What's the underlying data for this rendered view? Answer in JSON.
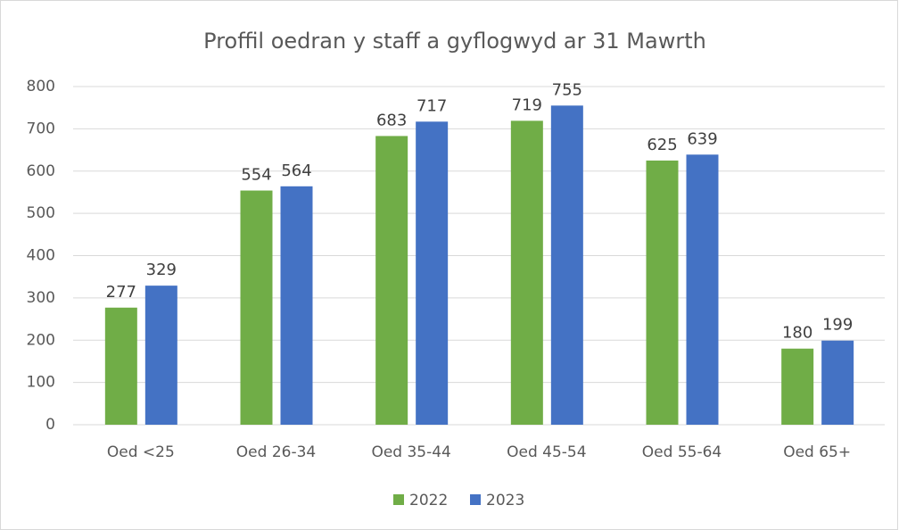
{
  "chart_data": {
    "type": "bar",
    "title": "Proffil oedran y staff a gyflogwyd ar 31 Mawrth",
    "categories": [
      "Oed <25",
      "Oed 26-34",
      "Oed 35-44",
      "Oed 45-54",
      "Oed 55-64",
      "Oed 65+"
    ],
    "series": [
      {
        "name": "2022",
        "color": "#70ad47",
        "values": [
          277,
          554,
          683,
          719,
          625,
          180
        ]
      },
      {
        "name": "2023",
        "color": "#4472c4",
        "values": [
          329,
          564,
          717,
          755,
          639,
          199
        ]
      }
    ],
    "ylim": [
      0,
      800
    ],
    "yticks": [
      0,
      100,
      200,
      300,
      400,
      500,
      600,
      700,
      800
    ],
    "grid": true,
    "legend": "bottom"
  }
}
